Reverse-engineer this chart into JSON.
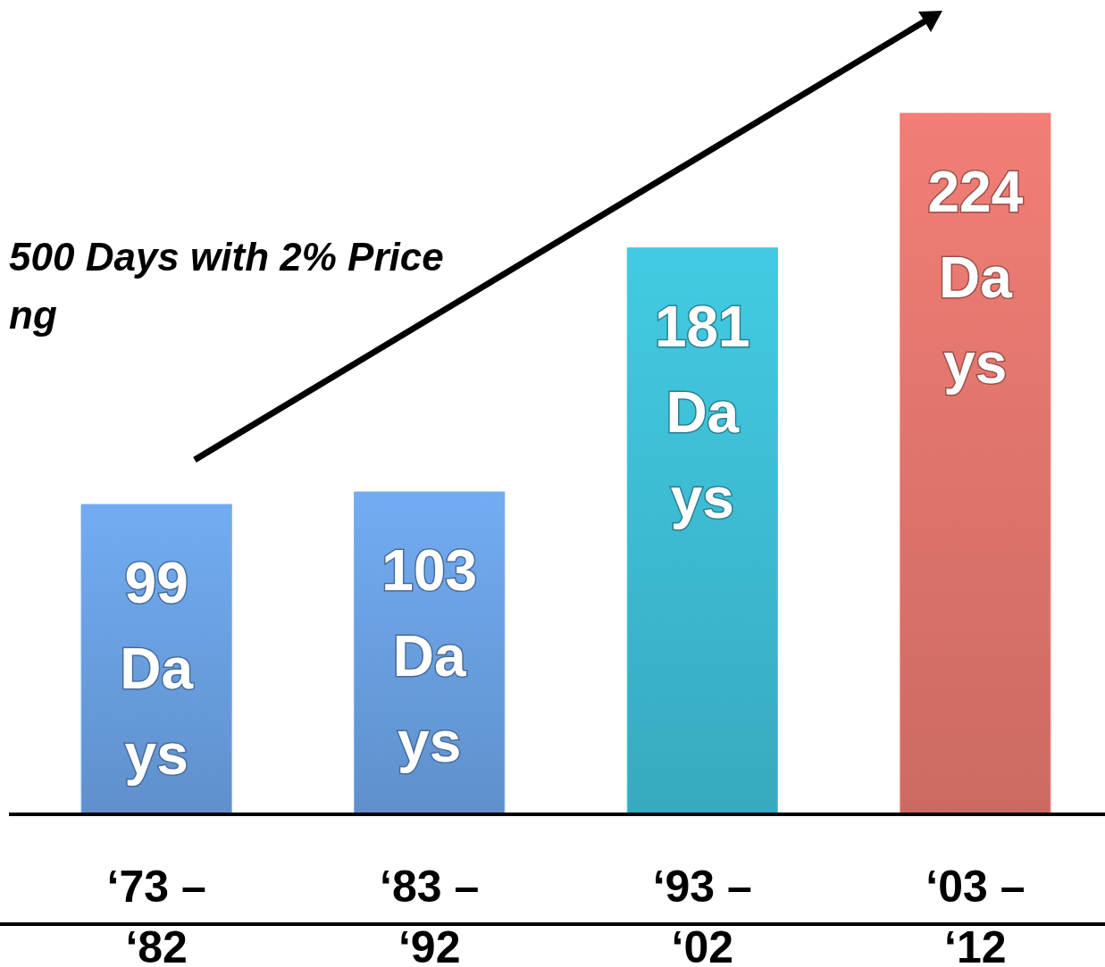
{
  "chart_data": {
    "type": "bar",
    "title": "500 Days with 2% Price\nng",
    "categories": [
      "‘73 –\n‘82",
      "‘83 –\n‘92",
      "‘93 –\n‘02",
      "‘03 –\n‘12"
    ],
    "values": [
      99,
      103,
      181,
      224
    ],
    "colors": [
      "#6ea6ea",
      "#6ea6ea",
      "#40c4dc",
      "#ea7a72"
    ],
    "value_labels": [
      "99\nDa\nys",
      "103\nDa\nys",
      "181\nDa\nys",
      "224\nDa\nys"
    ]
  }
}
